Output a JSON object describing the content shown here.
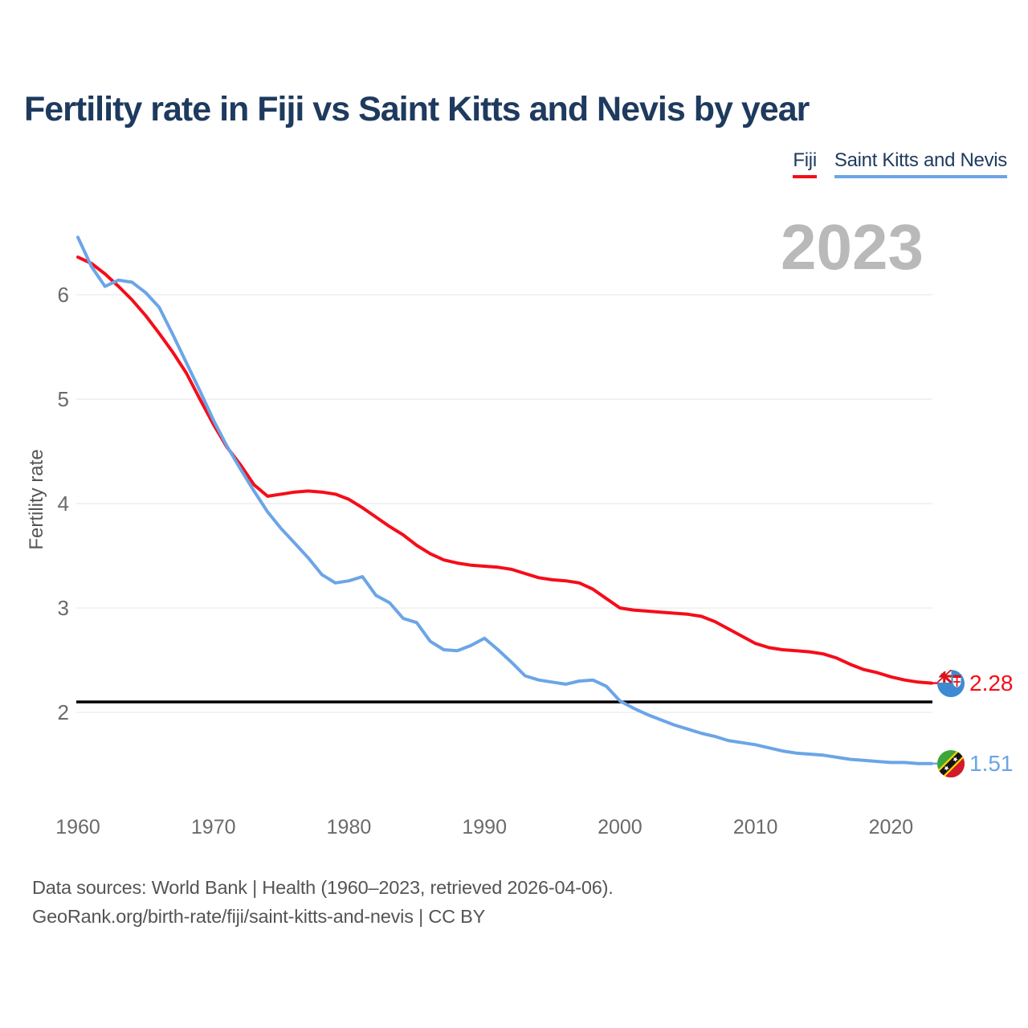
{
  "header": {
    "title": "Fertility rate in Fiji vs Saint Kitts and Nevis by year"
  },
  "legend": {
    "items": [
      {
        "label": "Fiji",
        "color": "#f50d1a"
      },
      {
        "label": "Saint Kitts and Nevis",
        "color": "#6ba5e7"
      }
    ]
  },
  "chart": {
    "watermark": "2023",
    "y_axis_label": "Fertility rate"
  },
  "chart_data": {
    "type": "line",
    "title": "Fertility rate in Fiji vs Saint Kitts and Nevis by year",
    "xlabel": "",
    "ylabel": "Fertility rate",
    "xlim": [
      1960,
      2023
    ],
    "ylim": [
      1.1,
      6.9
    ],
    "grid": "horizontal",
    "legend_position": "top-right",
    "x_ticks": [
      1960,
      1970,
      1980,
      1990,
      2000,
      2010,
      2020
    ],
    "y_ticks": [
      2,
      3,
      4,
      5,
      6
    ],
    "reference_line": {
      "value": 2.1,
      "color": "#000000"
    },
    "x": [
      1960,
      1961,
      1962,
      1963,
      1964,
      1965,
      1966,
      1967,
      1968,
      1969,
      1970,
      1971,
      1972,
      1973,
      1974,
      1975,
      1976,
      1977,
      1978,
      1979,
      1980,
      1981,
      1982,
      1983,
      1984,
      1985,
      1986,
      1987,
      1988,
      1989,
      1990,
      1991,
      1992,
      1993,
      1994,
      1995,
      1996,
      1997,
      1998,
      1999,
      2000,
      2001,
      2002,
      2003,
      2004,
      2005,
      2006,
      2007,
      2008,
      2009,
      2010,
      2011,
      2012,
      2013,
      2014,
      2015,
      2016,
      2017,
      2018,
      2019,
      2020,
      2021,
      2022,
      2023
    ],
    "series": [
      {
        "name": "Fiji",
        "color": "#f50d1a",
        "end_label": "2.28",
        "values": [
          6.36,
          6.3,
          6.2,
          6.08,
          5.95,
          5.8,
          5.63,
          5.45,
          5.25,
          5.0,
          4.76,
          4.54,
          4.37,
          4.18,
          4.07,
          4.09,
          4.11,
          4.12,
          4.11,
          4.09,
          4.04,
          3.96,
          3.87,
          3.78,
          3.7,
          3.6,
          3.52,
          3.46,
          3.43,
          3.41,
          3.4,
          3.39,
          3.37,
          3.33,
          3.29,
          3.27,
          3.26,
          3.24,
          3.18,
          3.09,
          3.0,
          2.98,
          2.97,
          2.96,
          2.95,
          2.94,
          2.92,
          2.87,
          2.8,
          2.73,
          2.66,
          2.62,
          2.6,
          2.59,
          2.58,
          2.56,
          2.52,
          2.46,
          2.41,
          2.38,
          2.34,
          2.31,
          2.29,
          2.28
        ]
      },
      {
        "name": "Saint Kitts and Nevis",
        "color": "#6ba5e7",
        "end_label": "1.51",
        "values": [
          6.55,
          6.27,
          6.08,
          6.14,
          6.12,
          6.02,
          5.88,
          5.62,
          5.35,
          5.08,
          4.8,
          4.55,
          4.33,
          4.12,
          3.92,
          3.76,
          3.62,
          3.48,
          3.32,
          3.24,
          3.26,
          3.3,
          3.12,
          3.05,
          2.9,
          2.86,
          2.68,
          2.6,
          2.59,
          2.64,
          2.71,
          2.6,
          2.48,
          2.35,
          2.31,
          2.29,
          2.27,
          2.3,
          2.31,
          2.25,
          2.11,
          2.04,
          1.98,
          1.93,
          1.88,
          1.84,
          1.8,
          1.77,
          1.73,
          1.71,
          1.69,
          1.66,
          1.63,
          1.61,
          1.6,
          1.59,
          1.57,
          1.55,
          1.54,
          1.53,
          1.52,
          1.52,
          1.51,
          1.51
        ]
      }
    ]
  },
  "footer": {
    "line1": "Data sources: World Bank | Health (1960–2023, retrieved 2026-04-06).",
    "line2": "GeoRank.org/birth-rate/fiji/saint-kitts-and-nevis | CC BY"
  },
  "theme": {
    "title_color": "#1e3a5e",
    "watermark_color": "#b9b9b9",
    "gridline_color": "#e9e9e9",
    "tick_color": "#6a6a6a",
    "footer_color": "#545454"
  }
}
